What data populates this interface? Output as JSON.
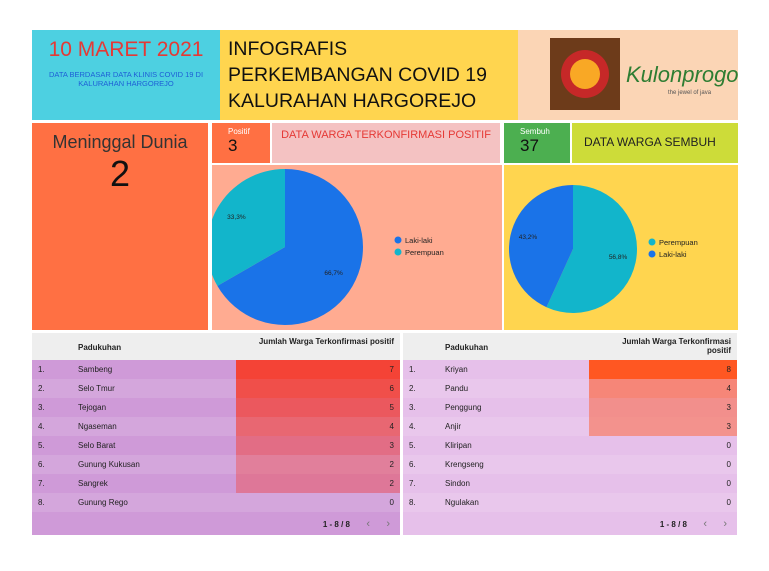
{
  "header": {
    "date": "10 MARET 2021",
    "date_note": "DATA BERDASAR DATA KLINIS COVID 19 DI KALURAHAN HARGOREJO",
    "title_lines": [
      "INFOGRAFIS",
      "PERKEMBANGAN COVID 19",
      "KALURAHAN HARGOREJO"
    ],
    "logo_text": "Kulonprogo",
    "logo_tagline": "the jewel of java"
  },
  "cards": {
    "deaths_label": "Meninggal Dunia",
    "deaths": 2,
    "positive_label": "Positif",
    "positive": 3,
    "positive_title": "DATA WARGA TERKONFIRMASI POSITIF",
    "recovered_label": "Sembuh",
    "recovered": 37,
    "recovered_title": "DATA WARGA SEMBUH"
  },
  "chart_data": [
    {
      "type": "pie",
      "categories": [
        "Laki-laki",
        "Perempuan"
      ],
      "values": [
        66.7,
        33.3
      ],
      "value_labels": [
        "66,7%",
        "33,3%"
      ],
      "colors": [
        "#1a73e8",
        "#12b5cb"
      ],
      "legend": "right"
    },
    {
      "type": "pie",
      "categories": [
        "Perempuan",
        "Laki-laki"
      ],
      "values": [
        56.8,
        43.2
      ],
      "value_labels": [
        "56,8%",
        "43,2%"
      ],
      "colors": [
        "#12b5cb",
        "#1a73e8"
      ],
      "legend": "right"
    }
  ],
  "tables": [
    {
      "columns": [
        "Padukuhan",
        "Jumlah Warga Terkonfirmasi positif"
      ],
      "rows": [
        [
          "1.",
          "Sambeng",
          7
        ],
        [
          "2.",
          "Selo Tmur",
          6
        ],
        [
          "3.",
          "Tejogan",
          5
        ],
        [
          "4.",
          "Ngaseman",
          4
        ],
        [
          "5.",
          "Selo Barat",
          3
        ],
        [
          "6.",
          "Gunung Kukusan",
          2
        ],
        [
          "7.",
          "Sangrek",
          2
        ],
        [
          "8.",
          "Gunung Rego",
          0
        ]
      ],
      "pagination": "1 - 8 / 8",
      "bar_color": "#f44336"
    },
    {
      "columns": [
        "Padukuhan",
        "Jumlah Warga Terkonfirmasi positif"
      ],
      "rows": [
        [
          "1.",
          "Kriyan",
          8
        ],
        [
          "2.",
          "Pandu",
          4
        ],
        [
          "3.",
          "Penggung",
          3
        ],
        [
          "4.",
          "Anjir",
          3
        ],
        [
          "5.",
          "Kliripan",
          0
        ],
        [
          "6.",
          "Krengseng",
          0
        ],
        [
          "7.",
          "Sindon",
          0
        ],
        [
          "8.",
          "Ngulakan",
          0
        ]
      ],
      "pagination": "1 - 8 / 8",
      "bar_color": "#ff5722"
    }
  ]
}
